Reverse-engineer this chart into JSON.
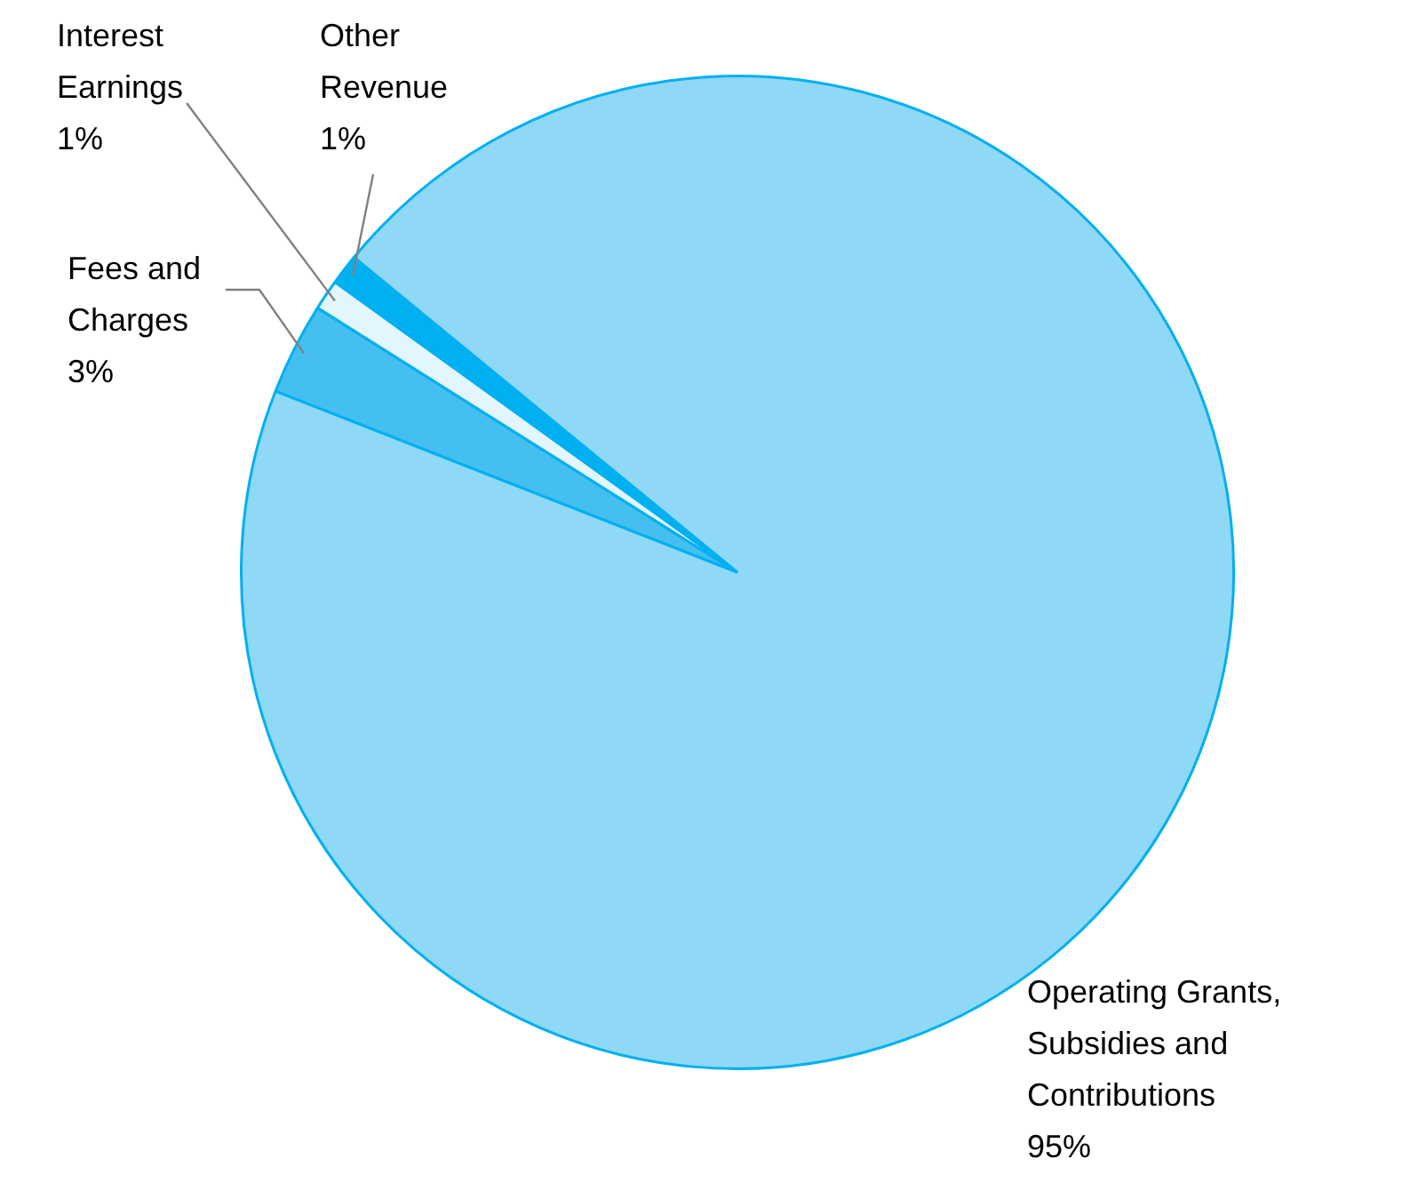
{
  "chart_data": {
    "type": "pie",
    "categories": [
      "Fees and Charges",
      "Interest Earnings",
      "Other Revenue",
      "Operating Grants, Subsidies and Contributions"
    ],
    "values": [
      3,
      1,
      1,
      95
    ],
    "value_labels": [
      "3%",
      "1%",
      "1%",
      "95%"
    ],
    "colors": [
      "#45bff0",
      "#e3f5fd",
      "#00b0f0",
      "#8fd8f6"
    ],
    "legend": false
  }
}
